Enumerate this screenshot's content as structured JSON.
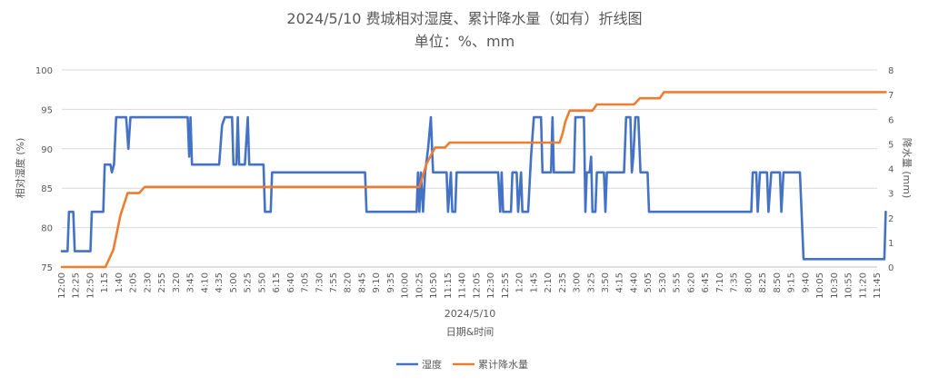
{
  "chart_data": {
    "type": "line",
    "title": "2024/5/10 费城相对湿度、累计降水量（如有）折线图",
    "subtitle": "单位：%、mm",
    "date_label": "2024/5/10",
    "xlabel": "日期&时间",
    "ylabel_left": "相对湿度 (%)",
    "ylabel_right": "降水量 (mm)",
    "ylim_left": [
      75,
      100
    ],
    "yticks_left": [
      75,
      80,
      85,
      90,
      95,
      100
    ],
    "ylim_right": [
      0,
      8
    ],
    "yticks_right": [
      0,
      1,
      2,
      3,
      4,
      5,
      6,
      7,
      8
    ],
    "grid": true,
    "legend_position": "bottom",
    "x_tick_labels": [
      "12:00",
      "12:25",
      "12:50",
      "1:15",
      "1:40",
      "2:05",
      "2:30",
      "2:55",
      "3:20",
      "3:45",
      "4:10",
      "4:35",
      "5:00",
      "5:25",
      "5:50",
      "6:15",
      "6:40",
      "7:05",
      "7:30",
      "7:55",
      "8:20",
      "8:45",
      "9:10",
      "9:35",
      "10:00",
      "10:25",
      "10:50",
      "11:15",
      "11:40",
      "12:05",
      "12:30",
      "12:55",
      "1:20",
      "1:45",
      "2:10",
      "2:35",
      "3:00",
      "3:25",
      "3:50",
      "4:15",
      "4:40",
      "5:05",
      "5:30",
      "5:55",
      "6:20",
      "6:45",
      "7:10",
      "7:35",
      "8:00",
      "8:25",
      "8:50",
      "9:15",
      "9:40",
      "10:05",
      "10:30",
      "10:55",
      "11:20",
      "11:45"
    ],
    "series": [
      {
        "name": "湿度",
        "axis": "left",
        "color": "#4472c4",
        "points": [
          [
            0,
            77
          ],
          [
            0.4,
            77
          ],
          [
            0.5,
            82
          ],
          [
            0.8,
            82
          ],
          [
            0.9,
            77
          ],
          [
            2.0,
            77
          ],
          [
            2.1,
            82
          ],
          [
            2.9,
            82
          ],
          [
            3.0,
            88
          ],
          [
            3.4,
            88
          ],
          [
            3.5,
            87
          ],
          [
            3.65,
            88
          ],
          [
            3.8,
            94
          ],
          [
            4.5,
            94
          ],
          [
            4.65,
            90
          ],
          [
            4.8,
            94
          ],
          [
            8.8,
            94
          ],
          [
            8.9,
            89
          ],
          [
            9.0,
            94
          ],
          [
            9.1,
            88
          ],
          [
            11.0,
            88
          ],
          [
            11.2,
            93
          ],
          [
            11.4,
            94
          ],
          [
            11.9,
            94
          ],
          [
            12.0,
            88
          ],
          [
            12.2,
            88
          ],
          [
            12.3,
            94
          ],
          [
            12.4,
            88
          ],
          [
            12.8,
            88
          ],
          [
            13.0,
            94
          ],
          [
            13.1,
            88
          ],
          [
            14.1,
            88
          ],
          [
            14.2,
            82
          ],
          [
            14.6,
            82
          ],
          [
            14.7,
            87
          ],
          [
            21.2,
            87
          ],
          [
            21.3,
            82
          ],
          [
            24.8,
            82
          ],
          [
            24.9,
            87
          ],
          [
            25.0,
            82
          ],
          [
            25.1,
            87
          ],
          [
            25.25,
            82
          ],
          [
            25.4,
            87
          ],
          [
            25.6,
            90
          ],
          [
            25.8,
            94
          ],
          [
            25.95,
            87
          ],
          [
            26.9,
            87
          ],
          [
            27.0,
            82
          ],
          [
            27.2,
            87
          ],
          [
            27.3,
            82
          ],
          [
            27.5,
            82
          ],
          [
            27.6,
            87
          ],
          [
            30.5,
            87
          ],
          [
            30.65,
            82
          ],
          [
            30.75,
            87
          ],
          [
            30.85,
            82
          ],
          [
            31.4,
            82
          ],
          [
            31.5,
            87
          ],
          [
            31.8,
            87
          ],
          [
            31.9,
            82
          ],
          [
            32.1,
            87
          ],
          [
            32.2,
            82
          ],
          [
            32.6,
            82
          ],
          [
            32.8,
            89
          ],
          [
            33.0,
            94
          ],
          [
            33.5,
            94
          ],
          [
            33.6,
            87
          ],
          [
            34.2,
            87
          ],
          [
            34.3,
            94
          ],
          [
            34.4,
            87
          ],
          [
            35.8,
            87
          ],
          [
            35.9,
            94
          ],
          [
            36.5,
            94
          ],
          [
            36.6,
            82
          ],
          [
            36.7,
            87
          ],
          [
            36.9,
            87
          ],
          [
            37.0,
            89
          ],
          [
            37.1,
            82
          ],
          [
            37.3,
            82
          ],
          [
            37.4,
            87
          ],
          [
            37.9,
            87
          ],
          [
            38.0,
            82
          ],
          [
            38.1,
            87
          ],
          [
            39.3,
            87
          ],
          [
            39.45,
            94
          ],
          [
            39.75,
            94
          ],
          [
            39.85,
            87
          ],
          [
            39.95,
            89
          ],
          [
            40.1,
            94
          ],
          [
            40.3,
            94
          ],
          [
            40.45,
            87
          ],
          [
            40.95,
            87
          ],
          [
            41.05,
            82
          ],
          [
            48.2,
            82
          ],
          [
            48.3,
            87
          ],
          [
            48.55,
            87
          ],
          [
            48.65,
            82
          ],
          [
            48.8,
            87
          ],
          [
            49.3,
            87
          ],
          [
            49.4,
            82
          ],
          [
            49.6,
            87
          ],
          [
            50.2,
            87
          ],
          [
            50.3,
            82
          ],
          [
            50.45,
            87
          ],
          [
            51.6,
            87
          ],
          [
            51.85,
            76
          ],
          [
            57.5,
            76
          ],
          [
            57.6,
            82
          ]
        ]
      },
      {
        "name": "累计降水量",
        "axis": "right",
        "color": "#ed7d31",
        "points": [
          [
            0,
            0
          ],
          [
            3.05,
            0
          ],
          [
            3.6,
            0.7
          ],
          [
            4.1,
            2.1
          ],
          [
            4.6,
            3.0
          ],
          [
            5.4,
            3.0
          ],
          [
            5.8,
            3.25
          ],
          [
            24.3,
            3.25
          ],
          [
            25.0,
            3.25
          ],
          [
            25.5,
            4.2
          ],
          [
            26.1,
            4.85
          ],
          [
            26.8,
            4.85
          ],
          [
            27.1,
            5.05
          ],
          [
            34.8,
            5.05
          ],
          [
            35.0,
            5.4
          ],
          [
            35.2,
            5.9
          ],
          [
            35.5,
            6.35
          ],
          [
            37.1,
            6.35
          ],
          [
            37.4,
            6.6
          ],
          [
            40.0,
            6.6
          ],
          [
            40.4,
            6.85
          ],
          [
            41.8,
            6.85
          ],
          [
            42.1,
            7.1
          ],
          [
            57.6,
            7.1
          ]
        ]
      }
    ]
  }
}
